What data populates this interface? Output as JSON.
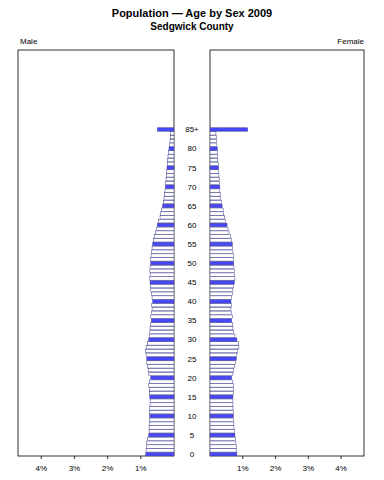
{
  "chart_data": {
    "type": "bar",
    "orientation": "horizontal",
    "title": "Population — Age by Sex 2009",
    "subtitle": "Sedgwick County",
    "categories": [
      "0",
      null,
      null,
      null,
      null,
      "5",
      null,
      null,
      null,
      null,
      "10",
      null,
      null,
      null,
      null,
      "15",
      null,
      null,
      null,
      null,
      "20",
      null,
      null,
      null,
      null,
      "25",
      null,
      null,
      null,
      null,
      "30",
      null,
      null,
      null,
      null,
      "35",
      null,
      null,
      null,
      null,
      "40",
      null,
      null,
      null,
      null,
      "45",
      null,
      null,
      null,
      null,
      "50",
      null,
      null,
      null,
      null,
      "55",
      null,
      null,
      null,
      null,
      "60",
      null,
      null,
      null,
      null,
      "65",
      null,
      null,
      null,
      null,
      "70",
      null,
      null,
      null,
      null,
      "75",
      null,
      null,
      null,
      null,
      "80",
      null,
      null,
      null,
      null,
      "85+"
    ],
    "xlim": [
      0,
      4.7
    ],
    "xticks": [
      {
        "value": 1,
        "label": "1%"
      },
      {
        "value": 2,
        "label": "2%"
      },
      {
        "value": 3,
        "label": "3%"
      },
      {
        "value": 4,
        "label": "4%"
      }
    ],
    "series": [
      {
        "name": "Male",
        "color": "#4747ff",
        "values": [
          0.85,
          0.84,
          0.83,
          0.82,
          0.8,
          0.76,
          0.75,
          0.75,
          0.74,
          0.74,
          0.73,
          0.74,
          0.73,
          0.72,
          0.72,
          0.73,
          0.74,
          0.74,
          0.76,
          0.74,
          0.7,
          0.76,
          0.78,
          0.8,
          0.82,
          0.82,
          0.84,
          0.86,
          0.84,
          0.8,
          0.76,
          0.74,
          0.73,
          0.72,
          0.7,
          0.68,
          0.7,
          0.68,
          0.66,
          0.67,
          0.64,
          0.66,
          0.68,
          0.7,
          0.71,
          0.72,
          0.73,
          0.72,
          0.73,
          0.72,
          0.7,
          0.7,
          0.69,
          0.68,
          0.66,
          0.64,
          0.62,
          0.58,
          0.56,
          0.52,
          0.5,
          0.47,
          0.42,
          0.4,
          0.37,
          0.34,
          0.32,
          0.3,
          0.28,
          0.27,
          0.26,
          0.25,
          0.24,
          0.23,
          0.22,
          0.21,
          0.2,
          0.19,
          0.18,
          0.16,
          0.15,
          0.14,
          0.12,
          0.11,
          0.1,
          0.5
        ],
        "colors": [
          "#4747ff",
          "#ffffff",
          "#ffffff",
          "#ffffff",
          "#ffffff",
          "#4747ff",
          "#ffffff",
          "#ffffff",
          "#ffffff",
          "#ffffff",
          "#4747ff",
          "#ffffff",
          "#ffffff",
          "#ffffff",
          "#ffffff",
          "#4747ff",
          "#ffffff",
          "#ffffff",
          "#ffffff",
          "#ffffff",
          "#4747ff",
          "#ffffff",
          "#ffffff",
          "#ffffff",
          "#ffffff",
          "#4747ff",
          "#ffffff",
          "#ffffff",
          "#ffffff",
          "#ffffff",
          "#4747ff",
          "#ffffff",
          "#ffffff",
          "#ffffff",
          "#ffffff",
          "#4747ff",
          "#ffffff",
          "#ffffff",
          "#ffffff",
          "#ffffff",
          "#4747ff",
          "#ffffff",
          "#ffffff",
          "#ffffff",
          "#ffffff",
          "#4747ff",
          "#ffffff",
          "#ffffff",
          "#ffffff",
          "#ffffff",
          "#4747ff",
          "#ffffff",
          "#ffffff",
          "#ffffff",
          "#ffffff",
          "#4747ff",
          "#ffffff",
          "#ffffff",
          "#ffffff",
          "#ffffff",
          "#4747ff",
          "#ffffff",
          "#ffffff",
          "#ffffff",
          "#ffffff",
          "#4747ff",
          "#ffffff",
          "#ffffff",
          "#ffffff",
          "#ffffff",
          "#4747ff",
          "#ffffff",
          "#ffffff",
          "#ffffff",
          "#ffffff",
          "#4747ff",
          "#ffffff",
          "#ffffff",
          "#ffffff",
          "#ffffff",
          "#4747ff",
          "#ffffff",
          "#ffffff",
          "#ffffff",
          "#ffffff",
          "#4747ff"
        ]
      },
      {
        "name": "Female",
        "color": "#4747ff",
        "values": [
          0.82,
          0.8,
          0.8,
          0.79,
          0.78,
          0.76,
          0.74,
          0.73,
          0.73,
          0.72,
          0.71,
          0.72,
          0.7,
          0.7,
          0.7,
          0.7,
          0.71,
          0.72,
          0.72,
          0.68,
          0.66,
          0.7,
          0.72,
          0.75,
          0.78,
          0.8,
          0.82,
          0.85,
          0.88,
          0.86,
          0.82,
          0.76,
          0.72,
          0.7,
          0.68,
          0.66,
          0.68,
          0.66,
          0.64,
          0.66,
          0.64,
          0.66,
          0.68,
          0.7,
          0.72,
          0.74,
          0.76,
          0.74,
          0.74,
          0.73,
          0.72,
          0.72,
          0.71,
          0.7,
          0.69,
          0.68,
          0.66,
          0.62,
          0.58,
          0.55,
          0.52,
          0.48,
          0.44,
          0.42,
          0.4,
          0.37,
          0.35,
          0.33,
          0.31,
          0.3,
          0.3,
          0.29,
          0.28,
          0.27,
          0.26,
          0.26,
          0.25,
          0.24,
          0.23,
          0.22,
          0.22,
          0.21,
          0.2,
          0.19,
          0.18,
          1.15
        ],
        "colors": [
          "#4747ff",
          "#ffffff",
          "#ffffff",
          "#ffffff",
          "#ffffff",
          "#4747ff",
          "#ffffff",
          "#ffffff",
          "#ffffff",
          "#ffffff",
          "#4747ff",
          "#ffffff",
          "#ffffff",
          "#ffffff",
          "#ffffff",
          "#4747ff",
          "#ffffff",
          "#ffffff",
          "#ffffff",
          "#ffffff",
          "#4747ff",
          "#ffffff",
          "#ffffff",
          "#ffffff",
          "#ffffff",
          "#4747ff",
          "#ffffff",
          "#ffffff",
          "#ffffff",
          "#ffffff",
          "#4747ff",
          "#ffffff",
          "#ffffff",
          "#ffffff",
          "#ffffff",
          "#4747ff",
          "#ffffff",
          "#ffffff",
          "#ffffff",
          "#ffffff",
          "#4747ff",
          "#ffffff",
          "#ffffff",
          "#ffffff",
          "#ffffff",
          "#4747ff",
          "#ffffff",
          "#ffffff",
          "#ffffff",
          "#ffffff",
          "#4747ff",
          "#ffffff",
          "#ffffff",
          "#ffffff",
          "#ffffff",
          "#4747ff",
          "#ffffff",
          "#ffffff",
          "#ffffff",
          "#ffffff",
          "#4747ff",
          "#ffffff",
          "#ffffff",
          "#ffffff",
          "#ffffff",
          "#4747ff",
          "#ffffff",
          "#ffffff",
          "#ffffff",
          "#ffffff",
          "#4747ff",
          "#ffffff",
          "#ffffff",
          "#ffffff",
          "#ffffff",
          "#4747ff",
          "#ffffff",
          "#ffffff",
          "#ffffff",
          "#ffffff",
          "#4747ff",
          "#ffffff",
          "#ffffff",
          "#ffffff",
          "#ffffff",
          "#4747ff"
        ]
      }
    ]
  }
}
